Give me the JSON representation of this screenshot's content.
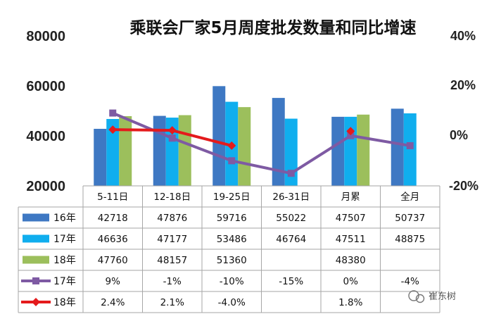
{
  "chart_data": {
    "type": "bar",
    "title": "乘联会厂家5月周度批发数量和同比增速",
    "categories": [
      "5-11日",
      "12-18日",
      "19-25日",
      "26-31日",
      "月累",
      "全月"
    ],
    "y_left": {
      "ticks": [
        "80000",
        "60000",
        "40000",
        "20000"
      ],
      "range": [
        20000,
        80000
      ]
    },
    "y_right": {
      "ticks": [
        "40%",
        "20%",
        "0%",
        "-20%"
      ],
      "range": [
        -20,
        40
      ]
    },
    "bar_series": [
      {
        "name": "16年",
        "color": "#3e78c3",
        "values": [
          42718,
          47876,
          59716,
          55022,
          47507,
          50737
        ],
        "labels": [
          "42718",
          "47876",
          "59716",
          "55022",
          "47507",
          "50737"
        ]
      },
      {
        "name": "17年",
        "color": "#10aeee",
        "values": [
          46636,
          47177,
          53486,
          46764,
          47511,
          48875
        ],
        "labels": [
          "46636",
          "47177",
          "53486",
          "46764",
          "47511",
          "48875"
        ]
      },
      {
        "name": "18年",
        "color": "#9cbf5c",
        "values": [
          47760,
          48157,
          51360,
          null,
          48380,
          null
        ],
        "labels": [
          "47760",
          "48157",
          "51360",
          "",
          "48380",
          ""
        ]
      }
    ],
    "line_series": [
      {
        "name": "17年",
        "color": "#7e5aa3",
        "marker": "square",
        "values": [
          9,
          -1,
          -10,
          -15,
          0,
          -4
        ],
        "labels": [
          "9%",
          "-1%",
          "-10%",
          "-15%",
          "0%",
          "-4%"
        ]
      },
      {
        "name": "18年",
        "color": "#e41a1c",
        "marker": "diamond",
        "values": [
          2.4,
          2.1,
          -4.0,
          null,
          1.8,
          null
        ],
        "labels": [
          "2.4%",
          "2.1%",
          "-4.0%",
          "",
          "1.8%",
          ""
        ]
      }
    ]
  },
  "watermark": "崔东树"
}
